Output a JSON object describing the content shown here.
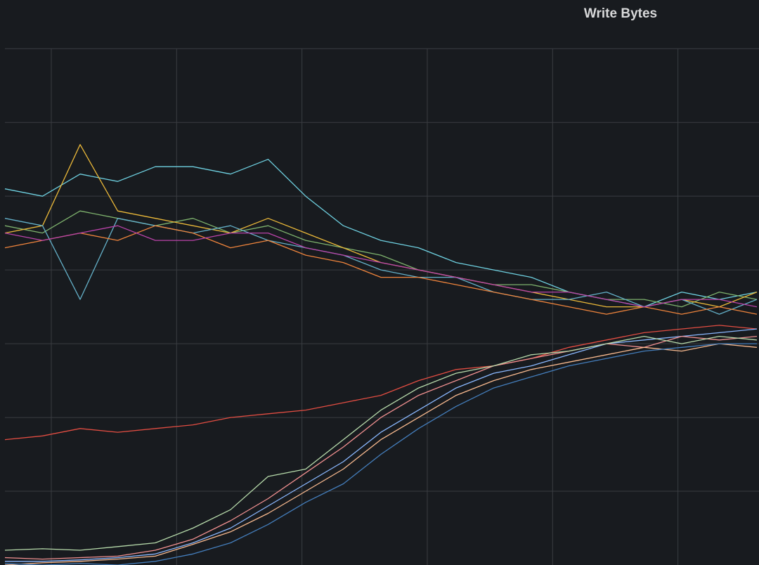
{
  "chart_data": {
    "type": "line",
    "title": "Write Bytes",
    "x": [
      0,
      3,
      6,
      9,
      12,
      15,
      18,
      21,
      24,
      27,
      30,
      33,
      36,
      39,
      42,
      45,
      48,
      51,
      54,
      57,
      60
    ],
    "xlim": [
      0,
      60
    ],
    "xticks": [
      3.7,
      13.7,
      23.7,
      33.7,
      43.7,
      53.7
    ],
    "ylim": [
      0,
      7.65
    ],
    "yticks": [
      1,
      2,
      3,
      4,
      5,
      6,
      7
    ],
    "grid": true,
    "series": [
      {
        "color": "#6ed0e0",
        "values": [
          5.1,
          5.0,
          5.3,
          5.2,
          5.4,
          5.4,
          5.3,
          5.5,
          5.0,
          4.6,
          4.4,
          4.3,
          4.1,
          4.0,
          3.9,
          3.7,
          3.6,
          3.5,
          3.7,
          3.6,
          3.7
        ]
      },
      {
        "color": "#7eb26d",
        "values": [
          4.6,
          4.5,
          4.8,
          4.7,
          4.6,
          4.7,
          4.5,
          4.6,
          4.4,
          4.3,
          4.2,
          4.0,
          3.9,
          3.8,
          3.8,
          3.7,
          3.6,
          3.6,
          3.5,
          3.7,
          3.6
        ]
      },
      {
        "color": "#eab839",
        "values": [
          4.5,
          4.6,
          5.7,
          4.8,
          4.7,
          4.6,
          4.5,
          4.7,
          4.5,
          4.3,
          4.1,
          4.0,
          3.9,
          3.8,
          3.7,
          3.6,
          3.5,
          3.5,
          3.6,
          3.5,
          3.7
        ]
      },
      {
        "color": "#64b0c8",
        "values": [
          4.7,
          4.6,
          3.6,
          4.7,
          4.6,
          4.5,
          4.6,
          4.4,
          4.3,
          4.2,
          4.0,
          3.9,
          3.9,
          3.7,
          3.6,
          3.6,
          3.7,
          3.5,
          3.6,
          3.4,
          3.6
        ]
      },
      {
        "color": "#ef843c",
        "values": [
          4.3,
          4.4,
          4.5,
          4.4,
          4.6,
          4.5,
          4.3,
          4.4,
          4.2,
          4.1,
          3.9,
          3.9,
          3.8,
          3.7,
          3.6,
          3.5,
          3.4,
          3.5,
          3.4,
          3.5,
          3.4
        ]
      },
      {
        "color": "#ba43a9",
        "values": [
          4.5,
          4.4,
          4.5,
          4.6,
          4.4,
          4.4,
          4.5,
          4.5,
          4.3,
          4.2,
          4.1,
          4.0,
          3.9,
          3.8,
          3.7,
          3.7,
          3.6,
          3.5,
          3.6,
          3.6,
          3.5
        ]
      },
      {
        "color": "#e24d42",
        "values": [
          1.7,
          1.75,
          1.85,
          1.8,
          1.85,
          1.9,
          2.0,
          2.05,
          2.1,
          2.2,
          2.3,
          2.5,
          2.65,
          2.7,
          2.8,
          2.95,
          3.05,
          3.15,
          3.2,
          3.25,
          3.2
        ]
      },
      {
        "color": "#8ab8ff",
        "values": [
          0.05,
          0.05,
          0.07,
          0.1,
          0.15,
          0.3,
          0.5,
          0.8,
          1.1,
          1.4,
          1.8,
          2.1,
          2.4,
          2.6,
          2.7,
          2.85,
          3.0,
          3.05,
          3.1,
          3.15,
          3.2
        ]
      },
      {
        "color": "#f29191",
        "values": [
          0.1,
          0.08,
          0.1,
          0.12,
          0.2,
          0.35,
          0.6,
          0.9,
          1.25,
          1.6,
          2.0,
          2.3,
          2.5,
          2.7,
          2.8,
          2.9,
          3.0,
          2.95,
          3.1,
          3.05,
          3.1
        ]
      },
      {
        "color": "#b7dbab",
        "values": [
          0.2,
          0.22,
          0.2,
          0.25,
          0.3,
          0.5,
          0.75,
          1.2,
          1.3,
          1.7,
          2.1,
          2.4,
          2.6,
          2.7,
          2.85,
          2.9,
          3.0,
          3.1,
          3.0,
          3.1,
          3.05
        ]
      },
      {
        "color": "#f9ba8f",
        "values": [
          0.0,
          0.03,
          0.05,
          0.08,
          0.12,
          0.28,
          0.45,
          0.7,
          1.0,
          1.3,
          1.7,
          2.0,
          2.3,
          2.5,
          2.65,
          2.75,
          2.85,
          2.95,
          2.9,
          3.0,
          2.95
        ]
      },
      {
        "color": "#447ebc",
        "values": [
          0.02,
          0.0,
          0.02,
          0.0,
          0.05,
          0.15,
          0.3,
          0.55,
          0.85,
          1.1,
          1.5,
          1.85,
          2.15,
          2.4,
          2.55,
          2.7,
          2.8,
          2.9,
          2.95,
          3.0,
          3.0
        ]
      }
    ]
  }
}
